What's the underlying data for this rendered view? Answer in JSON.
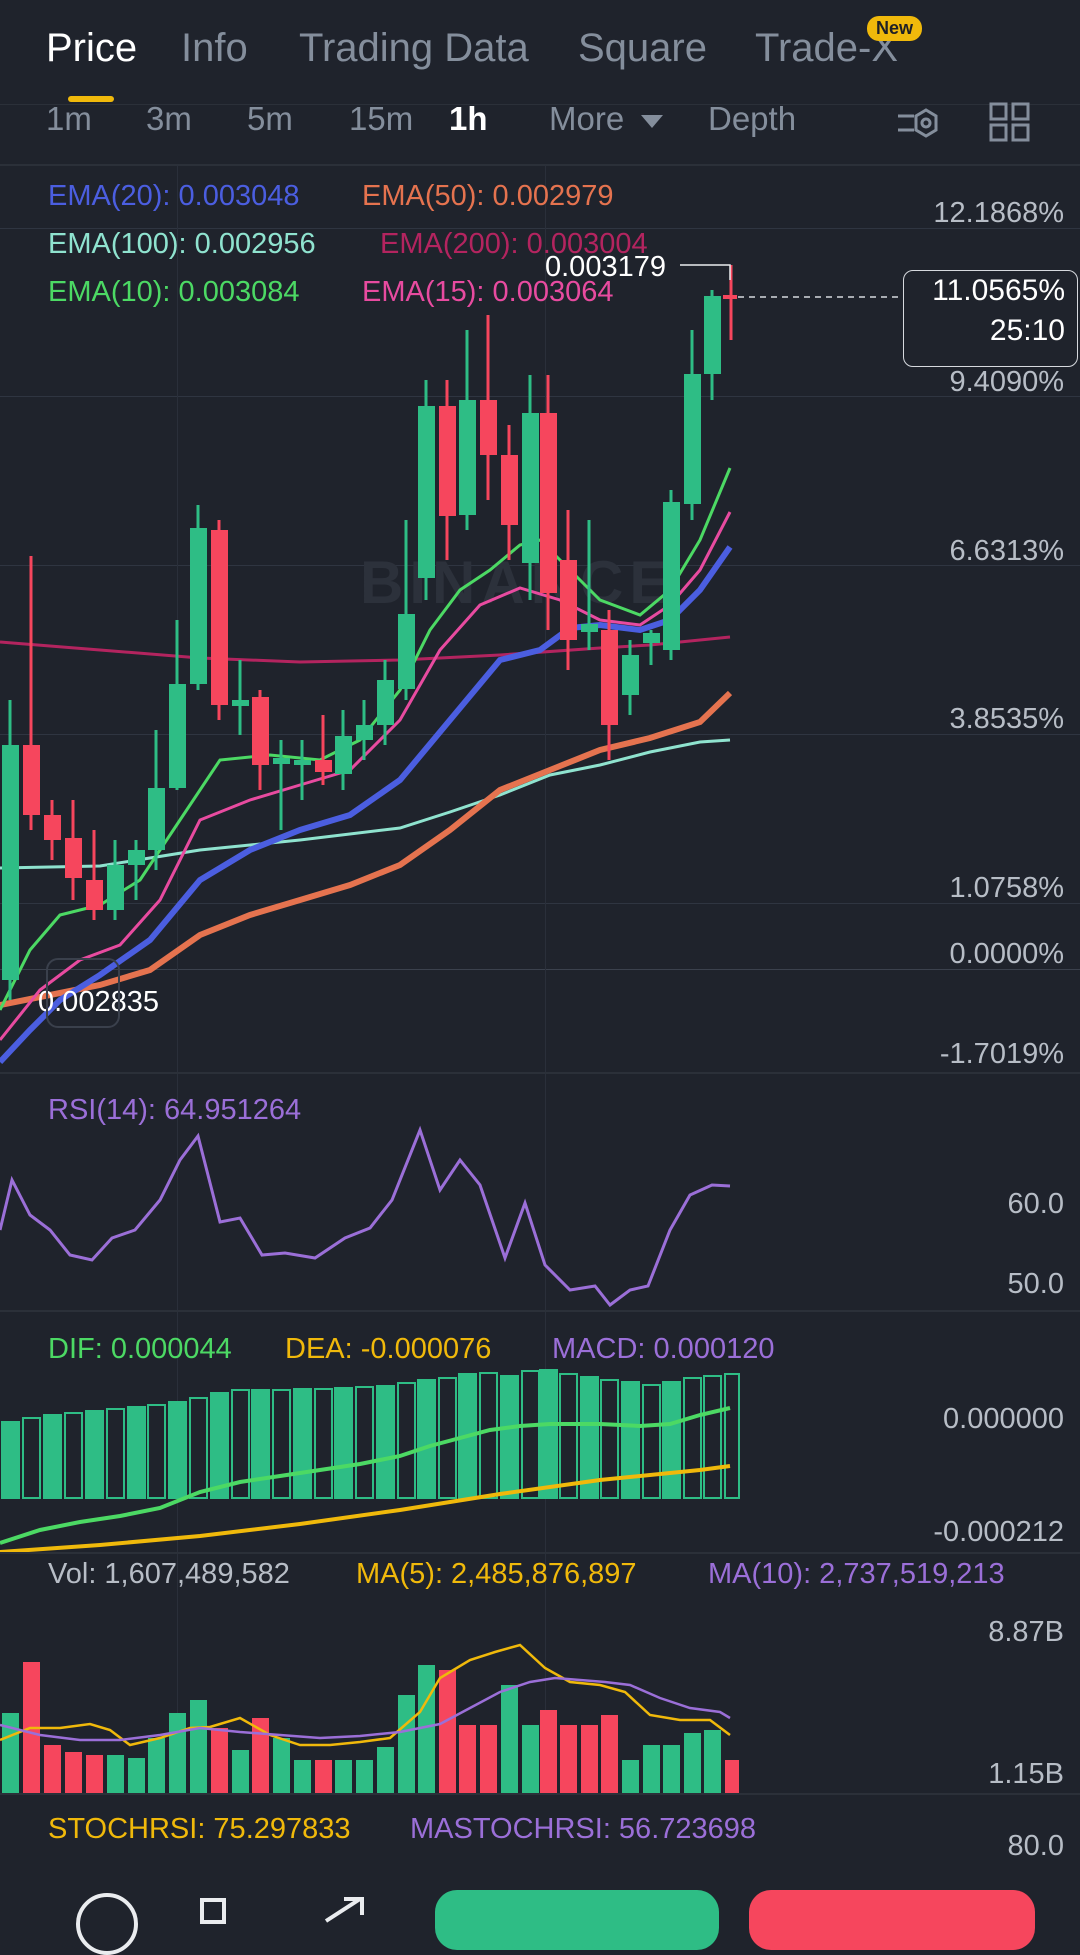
{
  "tabs": [
    {
      "label": "Price",
      "active": true
    },
    {
      "label": "Info"
    },
    {
      "label": "Trading Data"
    },
    {
      "label": "Square"
    },
    {
      "label": "Trade-X",
      "badge": "New"
    }
  ],
  "timeframes": [
    "1m",
    "3m",
    "5m",
    "15m",
    "1h",
    "More",
    "Depth"
  ],
  "active_timeframe": "1h",
  "ema": {
    "ema20": "EMA(20): 0.003048",
    "ema50": "EMA(50): 0.002979",
    "ema100": "EMA(100): 0.002956",
    "ema200": "EMA(200): 0.003004",
    "ema10": "EMA(10): 0.003084",
    "ema15": "EMA(15): 0.003064"
  },
  "price_axis": [
    "12.1868%",
    "9.4090%",
    "6.6313%",
    "3.8535%",
    "1.0758%",
    "0.0000%",
    "-1.7019%"
  ],
  "high_marker": "0.003179",
  "low_marker": "0.002835",
  "current": {
    "percent": "11.0565%",
    "countdown": "25:10"
  },
  "watermark": "BINANCE",
  "rsi": {
    "label": "RSI(14): 64.951264",
    "axis": [
      "60.0",
      "50.0"
    ]
  },
  "macd": {
    "dif": "DIF: 0.000044",
    "dea": "DEA: -0.000076",
    "macd": "MACD: 0.000120",
    "axis": [
      "0.000000",
      "-0.000212"
    ]
  },
  "vol": {
    "vol": "Vol: 1,607,489,582",
    "ma5": "MA(5): 2,485,876,897",
    "ma10": "MA(10): 2,737,519,213",
    "axis": [
      "8.87B",
      "1.15B"
    ]
  },
  "stoch": {
    "stochrsi": "STOCHRSI: 75.297833",
    "mastochrsi": "MASTOCHRSI: 56.723698",
    "axis": "80.0"
  },
  "colors": {
    "background": "#1f232c",
    "up": "#2ebd85",
    "down": "#f6465d",
    "ema20": "#4b5ee0",
    "ema50": "#e5734f",
    "ema100": "#8fe3cf",
    "ema200": "#b3245f",
    "ema10": "#4cd964",
    "ema15": "#e84ba0",
    "accent": "#f0b90b"
  },
  "icons": [
    "indicator-settings-icon",
    "layout-grid-icon",
    "more-icon",
    "modules-icon",
    "share-icon",
    "expand-icon"
  ]
}
